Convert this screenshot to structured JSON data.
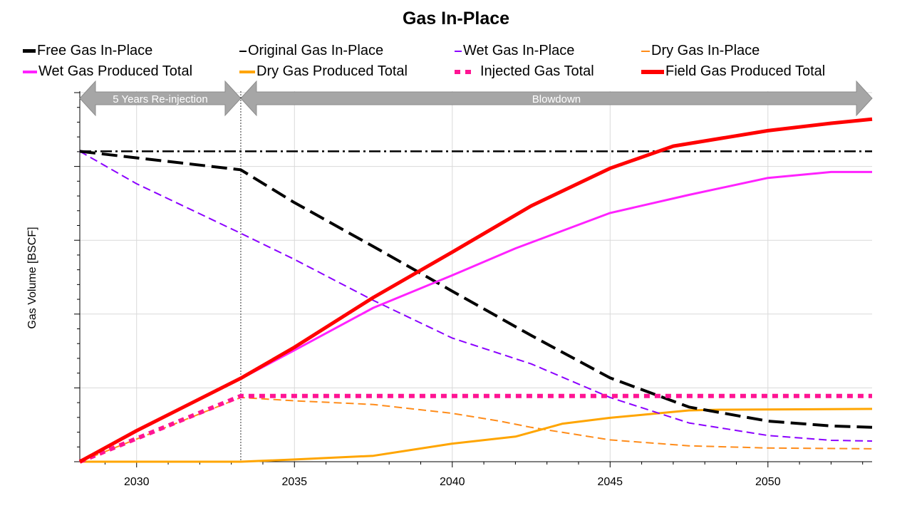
{
  "chart_data": {
    "type": "line",
    "title": "Gas In-Place",
    "xlabel": "",
    "ylabel": "Gas Volume [BSCF]",
    "xlim": [
      2028.2,
      2053.3
    ],
    "ylim": [
      0,
      1
    ],
    "x_ticks": [
      2030,
      2035,
      2040,
      2045,
      2050
    ],
    "y_tick_labels_shown": false,
    "grid": true,
    "legend_position": "top",
    "phase_annotations": [
      {
        "label": "5 Years Re-injection",
        "x_start": 2028.2,
        "x_end": 2033.3
      },
      {
        "label": "Blowdown",
        "x_start": 2033.3,
        "x_end": 2053.3
      }
    ],
    "phase_divider_x": 2033.3,
    "series": [
      {
        "name": "Free Gas In-Place",
        "color": "#000000",
        "style": "long-dash",
        "points": [
          [
            2028.2,
            0.841
          ],
          [
            2033.3,
            0.791
          ],
          [
            2035,
            0.702
          ],
          [
            2037.5,
            0.583
          ],
          [
            2040,
            0.462
          ],
          [
            2042.5,
            0.342
          ],
          [
            2045,
            0.227
          ],
          [
            2047.5,
            0.148
          ],
          [
            2050,
            0.11
          ],
          [
            2052,
            0.097
          ],
          [
            2053.3,
            0.093
          ]
        ]
      },
      {
        "name": "Original Gas In-Place",
        "color": "#000000",
        "style": "dash-dot",
        "points": [
          [
            2028.2,
            0.841
          ],
          [
            2053.3,
            0.841
          ]
        ]
      },
      {
        "name": "Wet Gas In-Place",
        "color": "#8b00ff",
        "style": "dash",
        "points": [
          [
            2028.2,
            0.841
          ],
          [
            2030,
            0.753
          ],
          [
            2033.3,
            0.619
          ],
          [
            2035,
            0.548
          ],
          [
            2037.5,
            0.437
          ],
          [
            2040,
            0.335
          ],
          [
            2042.5,
            0.265
          ],
          [
            2045,
            0.174
          ],
          [
            2047.5,
            0.105
          ],
          [
            2050,
            0.071
          ],
          [
            2052,
            0.058
          ],
          [
            2053.3,
            0.056
          ]
        ]
      },
      {
        "name": "Dry Gas In-Place",
        "color": "#ff8c1a",
        "style": "dash",
        "points": [
          [
            2028.2,
            0.0
          ],
          [
            2033.3,
            0.174
          ],
          [
            2035,
            0.165
          ],
          [
            2037.5,
            0.155
          ],
          [
            2040,
            0.131
          ],
          [
            2041.5,
            0.11
          ],
          [
            2042.5,
            0.093
          ],
          [
            2045,
            0.059
          ],
          [
            2047.5,
            0.043
          ],
          [
            2050,
            0.037
          ],
          [
            2053.3,
            0.035
          ]
        ]
      },
      {
        "name": "Wet Gas Produced Total",
        "color": "#ff22ff",
        "style": "solid",
        "points": [
          [
            2028.2,
            0.0
          ],
          [
            2030,
            0.082
          ],
          [
            2033.3,
            0.225
          ],
          [
            2035,
            0.302
          ],
          [
            2037.5,
            0.417
          ],
          [
            2040,
            0.505
          ],
          [
            2042,
            0.578
          ],
          [
            2045,
            0.674
          ],
          [
            2047.5,
            0.723
          ],
          [
            2050,
            0.769
          ],
          [
            2052,
            0.785
          ],
          [
            2053.3,
            0.785
          ]
        ]
      },
      {
        "name": "Dry Gas Produced Total",
        "color": "#ffa500",
        "style": "solid",
        "points": [
          [
            2028.2,
            0.0
          ],
          [
            2033.3,
            0.0
          ],
          [
            2035,
            0.006
          ],
          [
            2037.5,
            0.016
          ],
          [
            2040,
            0.049
          ],
          [
            2042,
            0.068
          ],
          [
            2043.5,
            0.103
          ],
          [
            2045,
            0.119
          ],
          [
            2047.5,
            0.139
          ],
          [
            2048.5,
            0.141
          ],
          [
            2053.3,
            0.143
          ]
        ]
      },
      {
        "name": "Injected Gas Total",
        "color": "#ff1493",
        "style": "dotted",
        "points": [
          [
            2028.2,
            0.0
          ],
          [
            2033.3,
            0.178
          ],
          [
            2053.3,
            0.178
          ]
        ]
      },
      {
        "name": "Field Gas Produced Total",
        "color": "#ff0000",
        "style": "solid-thick",
        "points": [
          [
            2028.2,
            0.0
          ],
          [
            2030,
            0.084
          ],
          [
            2033.3,
            0.226
          ],
          [
            2035,
            0.31
          ],
          [
            2037.5,
            0.445
          ],
          [
            2040,
            0.568
          ],
          [
            2042.5,
            0.693
          ],
          [
            2045,
            0.795
          ],
          [
            2047,
            0.855
          ],
          [
            2050,
            0.897
          ],
          [
            2052,
            0.917
          ],
          [
            2053.3,
            0.928
          ]
        ]
      }
    ]
  }
}
